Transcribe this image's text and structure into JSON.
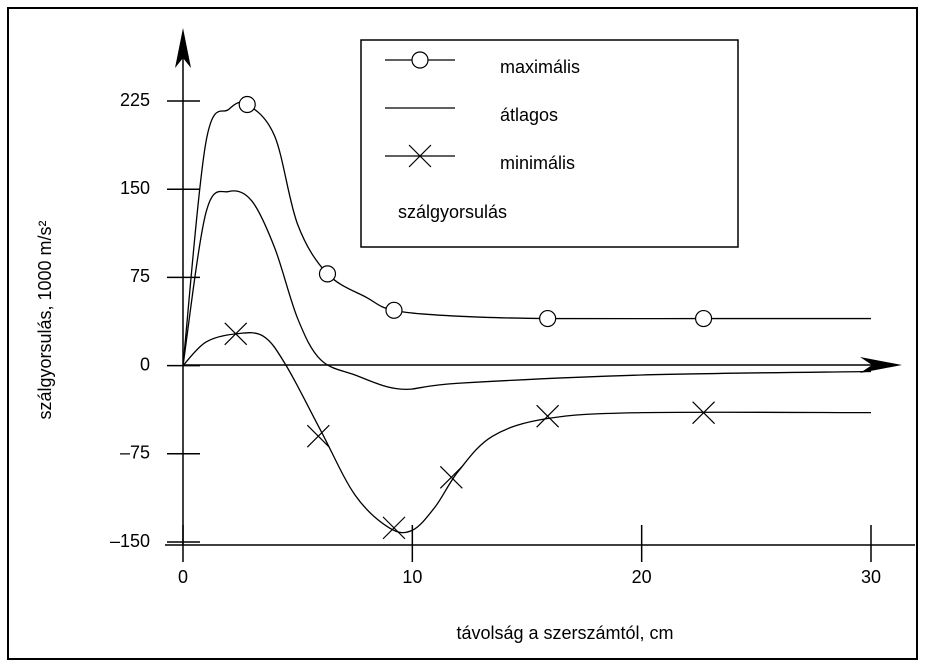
{
  "chart_data": {
    "type": "line",
    "xlabel": "távolság a szerszámtól, cm",
    "ylabel": "szálgyorsulás, 1000 m/s²",
    "legend_title": "szálgyorsulás",
    "xlim": [
      0,
      30
    ],
    "ylim": [
      -150,
      225
    ],
    "xticks": [
      0,
      10,
      20,
      30
    ],
    "yticks": [
      {
        "value": -150,
        "label": "–150"
      },
      {
        "value": -75,
        "label": "–75"
      },
      0,
      75,
      150,
      225
    ],
    "series": [
      {
        "name": "maximális",
        "color": "#000000",
        "marker": "circle",
        "x": [
          0,
          1,
          2,
          2.8,
          4,
          5,
          6.3,
          8,
          9.2,
          12,
          15.9,
          22.7,
          30
        ],
        "values": [
          0,
          190,
          218,
          222,
          195,
          120,
          78,
          58,
          47,
          42,
          40,
          40,
          40
        ],
        "marker_x": [
          2.8,
          6.3,
          9.2,
          15.9,
          22.7
        ],
        "marker_values": [
          222,
          78,
          47,
          40,
          40
        ]
      },
      {
        "name": "átlagos",
        "color": "#000000",
        "marker": "none",
        "x": [
          0,
          1,
          2,
          3,
          4,
          5,
          6,
          7.5,
          9.5,
          12,
          20,
          30
        ],
        "values": [
          0,
          130,
          148,
          140,
          100,
          40,
          5,
          -8,
          -20,
          -15,
          -8,
          -5
        ]
      },
      {
        "name": "minimális",
        "color": "#000000",
        "marker": "cross",
        "x": [
          0,
          1,
          2.3,
          3.5,
          4.5,
          6,
          7.5,
          9,
          10,
          11,
          12,
          13.5,
          15.9,
          20,
          30
        ],
        "values": [
          0,
          20,
          27,
          25,
          0,
          -55,
          -110,
          -138,
          -140,
          -120,
          -90,
          -60,
          -45,
          -40,
          -40
        ],
        "marker_x": [
          2.3,
          5.9,
          9.2,
          11.7,
          15.9,
          22.7
        ],
        "marker_values": [
          27,
          -60,
          -138,
          -95,
          -43,
          -40
        ]
      }
    ]
  }
}
